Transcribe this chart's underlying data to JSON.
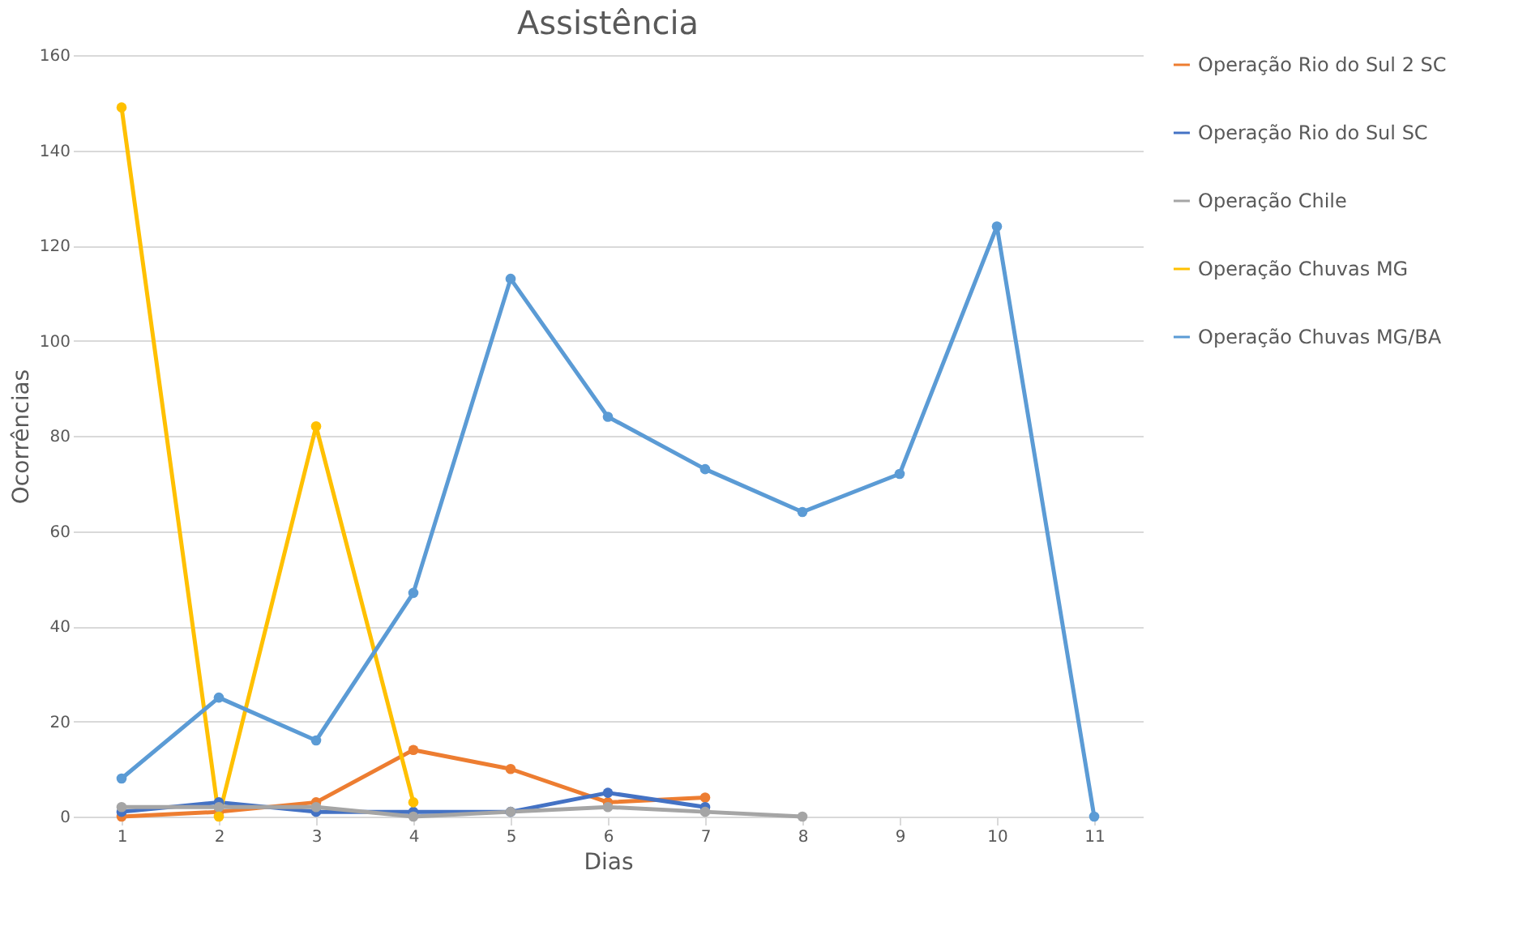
{
  "chart_data": {
    "type": "line",
    "title": "Assistência",
    "xlabel": "Dias",
    "ylabel": "Ocorrências",
    "categories": [
      "1",
      "2",
      "3",
      "4",
      "5",
      "6",
      "7",
      "8",
      "9",
      "10",
      "11"
    ],
    "series": [
      {
        "name": "Operação Rio do Sul 2 SC",
        "color": "#ed7d31",
        "values": [
          0,
          1,
          3,
          14,
          10,
          3,
          4,
          null,
          null,
          null,
          null
        ]
      },
      {
        "name": "Operação Rio do Sul SC",
        "color": "#4472c4",
        "values": [
          1,
          3,
          1,
          1,
          1,
          5,
          2,
          null,
          null,
          null,
          null
        ]
      },
      {
        "name": "Operação Chile",
        "color": "#a5a5a5",
        "values": [
          2,
          2,
          2,
          0,
          1,
          2,
          1,
          0,
          null,
          null,
          null
        ]
      },
      {
        "name": "Operação Chuvas MG",
        "color": "#ffc000",
        "values": [
          149,
          0,
          82,
          3,
          null,
          null,
          null,
          null,
          null,
          null,
          null
        ]
      },
      {
        "name": "Operação Chuvas MG/BA",
        "color": "#5b9bd5",
        "values": [
          8,
          25,
          16,
          47,
          113,
          84,
          73,
          64,
          72,
          124,
          0
        ]
      }
    ],
    "ylim": [
      0,
      160
    ],
    "yticks": [
      0,
      20,
      40,
      60,
      80,
      100,
      120,
      140,
      160
    ],
    "grid": "y",
    "legend": "right",
    "marker": "circle",
    "line_style": "solid"
  }
}
